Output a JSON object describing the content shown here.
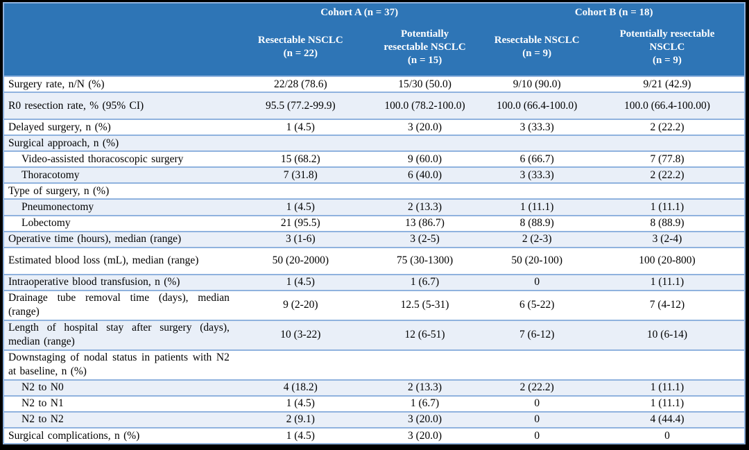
{
  "colors": {
    "header_bg": "#2e75b6",
    "header_text": "#ffffff",
    "row_bg": "#ffffff",
    "row_alt_bg": "#e9eff8",
    "separator": "#8fb2de",
    "frame": "#000000",
    "body_text": "#000000"
  },
  "table": {
    "header": {
      "groups": [
        {
          "label": "Cohort A (n = 37)"
        },
        {
          "label": "Cohort B (n = 18)"
        }
      ],
      "columns": [
        {
          "lines": [
            "Resectable NSCLC"
          ],
          "n": "(n = 22)"
        },
        {
          "lines": [
            "Potentially",
            "resectable NSCLC"
          ],
          "n": "(n = 15)"
        },
        {
          "lines": [
            "Resectable NSCLC"
          ],
          "n": "(n = 9)"
        },
        {
          "lines": [
            "Potentially resectable",
            "NSCLC"
          ],
          "n": "(n = 9)"
        }
      ]
    },
    "rows": [
      {
        "label": "Surgery rate, n/N (%)",
        "indent": false,
        "size": "single",
        "values": [
          "22/28 (78.6)",
          "15/30 (50.0)",
          "9/10 (90.0)",
          "9/21 (42.9)"
        ]
      },
      {
        "label": "R0 resection rate, % (95% CI)",
        "indent": false,
        "size": "tall",
        "values": [
          "95.5 (77.2-99.9)",
          "100.0 (78.2-100.0)",
          "100.0 (66.4-100.0)",
          "100.0 (66.4-100.00)"
        ]
      },
      {
        "label": "Delayed surgery, n (%)",
        "indent": false,
        "size": "single",
        "values": [
          "1 (4.5)",
          "3 (20.0)",
          "3 (33.3)",
          "2 (22.2)"
        ]
      },
      {
        "label": "Surgical approach, n (%)",
        "indent": false,
        "size": "single",
        "values": [
          "",
          "",
          "",
          ""
        ]
      },
      {
        "label": "Video-assisted thoracoscopic surgery",
        "indent": true,
        "size": "single",
        "values": [
          "15 (68.2)",
          "9 (60.0)",
          "6 (66.7)",
          "7 (77.8)"
        ]
      },
      {
        "label": "Thoracotomy",
        "indent": true,
        "size": "single",
        "values": [
          "7 (31.8)",
          "6 (40.0)",
          "3 (33.3)",
          "2 (22.2)"
        ]
      },
      {
        "label": "Type of surgery, n (%)",
        "indent": false,
        "size": "single",
        "values": [
          "",
          "",
          "",
          ""
        ]
      },
      {
        "label": "Pneumonectomy",
        "indent": true,
        "size": "single",
        "values": [
          "1 (4.5)",
          "2 (13.3)",
          "1 (11.1)",
          "1 (11.1)"
        ]
      },
      {
        "label": "Lobectomy",
        "indent": true,
        "size": "single",
        "values": [
          "21 (95.5)",
          "13 (86.7)",
          "8 (88.9)",
          "8 (88.9)"
        ]
      },
      {
        "label": "Operative time (hours), median (range)",
        "indent": false,
        "size": "single",
        "values": [
          "3 (1-6)",
          "3 (2-5)",
          "2 (2-3)",
          "3 (2-4)"
        ]
      },
      {
        "label": "Estimated blood loss (mL), median (range)",
        "indent": false,
        "size": "tall",
        "values": [
          "50 (20-2000)",
          "75 (30-1300)",
          "50 (20-100)",
          "100 (20-800)"
        ]
      },
      {
        "label": "Intraoperative blood transfusion, n (%)",
        "indent": false,
        "size": "single",
        "values": [
          "1 (4.5)",
          "1 (6.7)",
          "0",
          "1 (11.1)"
        ]
      },
      {
        "label": "Drainage tube removal time (days), median (range)",
        "indent": false,
        "size": "twoline",
        "values": [
          "9 (2-20)",
          "12.5 (5-31)",
          "6 (5-22)",
          "7 (4-12)"
        ]
      },
      {
        "label": "Length of hospital stay after surgery (days), median (range)",
        "indent": false,
        "size": "twoline",
        "values": [
          "10 (3-22)",
          "12 (6-51)",
          "7 (6-12)",
          "10 (6-14)"
        ]
      },
      {
        "label": "Downstaging of nodal status in patients with N2 at baseline, n (%)",
        "indent": false,
        "size": "twoline",
        "values": [
          "",
          "",
          "",
          ""
        ]
      },
      {
        "label": "N2 to N0",
        "indent": true,
        "size": "single",
        "values": [
          "4 (18.2)",
          "2 (13.3)",
          "2 (22.2)",
          "1 (11.1)"
        ]
      },
      {
        "label": "N2 to N1",
        "indent": true,
        "size": "single",
        "values": [
          "1 (4.5)",
          "1 (6.7)",
          "0",
          "1 (11.1)"
        ]
      },
      {
        "label": "N2 to N2",
        "indent": true,
        "size": "single",
        "values": [
          "2 (9.1)",
          "3 (20.0)",
          "0",
          "4 (44.4)"
        ]
      },
      {
        "label": "Surgical complications, n (%)",
        "indent": false,
        "size": "single",
        "values": [
          "1 (4.5)",
          "3 (20.0)",
          "0",
          "0"
        ]
      }
    ]
  }
}
